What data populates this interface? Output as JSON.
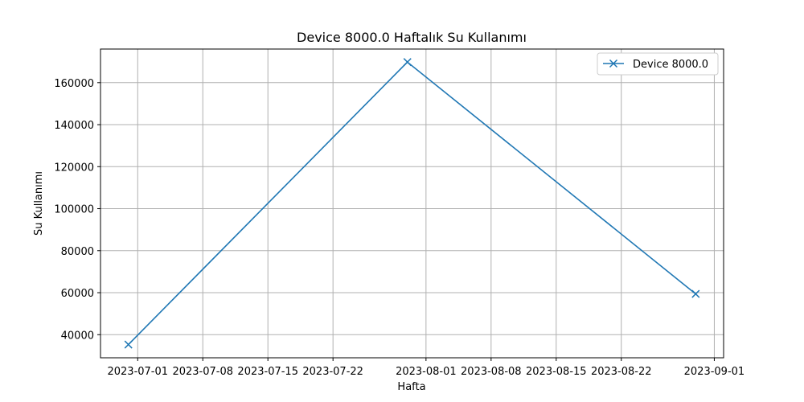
{
  "chart_data": {
    "type": "line",
    "title": "Device 8000.0 Haftalık Su Kullanımı",
    "xlabel": "Hafta",
    "ylabel": "Su Kullanımı",
    "x": [
      "2023-06-30",
      "2023-07-30",
      "2023-08-30"
    ],
    "series": [
      {
        "name": "Device 8000.0",
        "values": [
          35300,
          169800,
          59400
        ],
        "color": "#1f77b4",
        "marker": "x"
      }
    ],
    "xlim": [
      "2023-06-27",
      "2023-09-02"
    ],
    "ylim": [
      29000,
      176000
    ],
    "xticks": [
      "2023-07-01",
      "2023-07-08",
      "2023-07-15",
      "2023-07-22",
      "2023-08-01",
      "2023-08-08",
      "2023-08-15",
      "2023-08-22",
      "2023-09-01"
    ],
    "yticks": [
      40000,
      60000,
      80000,
      100000,
      120000,
      140000,
      160000
    ],
    "grid": true,
    "legend_position": "top-right"
  }
}
